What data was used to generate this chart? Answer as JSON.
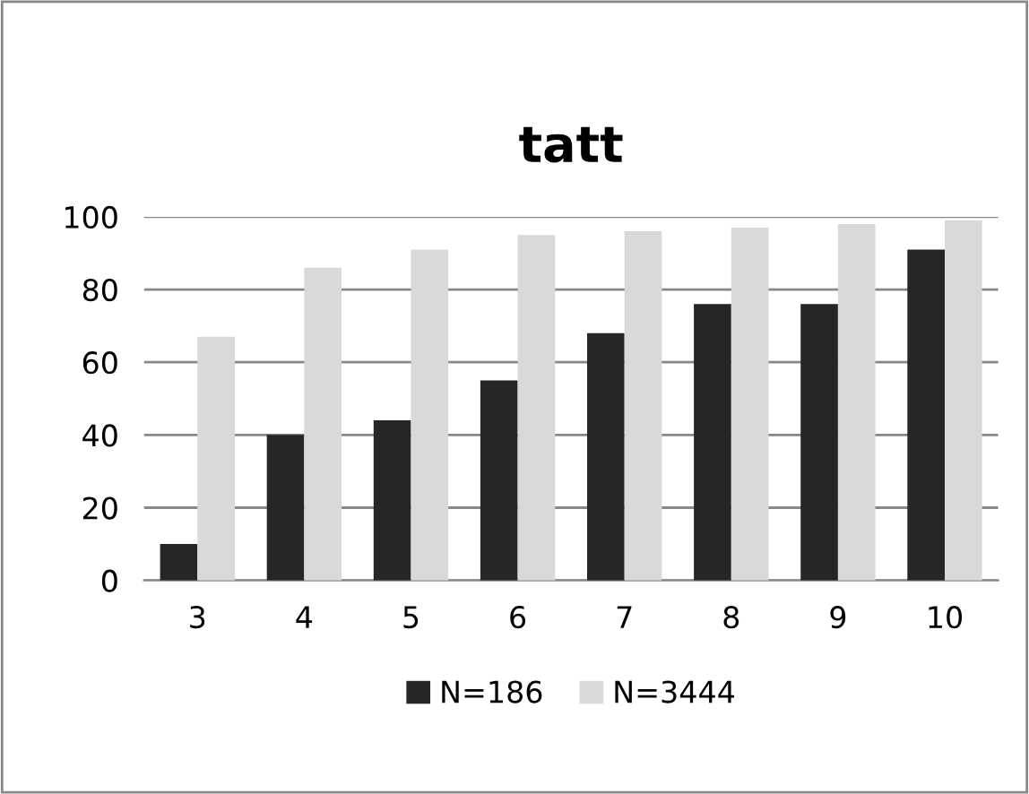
{
  "chart_data": {
    "type": "bar",
    "title": "tatt",
    "categories": [
      "3",
      "4",
      "5",
      "6",
      "7",
      "8",
      "9",
      "10"
    ],
    "series": [
      {
        "name": "N=186",
        "color": "#262626",
        "values": [
          10,
          40,
          44,
          55,
          68,
          76,
          76,
          91
        ]
      },
      {
        "name": "N=3444",
        "color": "#d9d9d9",
        "values": [
          67,
          86,
          91,
          95,
          96,
          97,
          98,
          99
        ]
      }
    ],
    "ylim": [
      0,
      100
    ],
    "yticks": [
      0,
      20,
      40,
      60,
      80,
      100
    ],
    "grid": "y",
    "legend": "bottom"
  }
}
